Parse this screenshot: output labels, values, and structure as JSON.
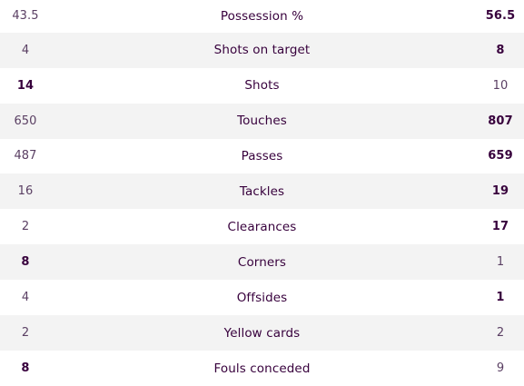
{
  "stats": [
    {
      "home": "43.5",
      "label": "Possession %",
      "away": "56.5",
      "home_bold": false,
      "away_bold": true
    },
    {
      "home": "4",
      "label": "Shots on target",
      "away": "8",
      "home_bold": false,
      "away_bold": true
    },
    {
      "home": "14",
      "label": "Shots",
      "away": "10",
      "home_bold": true,
      "away_bold": false
    },
    {
      "home": "650",
      "label": "Touches",
      "away": "807",
      "home_bold": false,
      "away_bold": true
    },
    {
      "home": "487",
      "label": "Passes",
      "away": "659",
      "home_bold": false,
      "away_bold": true
    },
    {
      "home": "16",
      "label": "Tackles",
      "away": "19",
      "home_bold": false,
      "away_bold": true
    },
    {
      "home": "2",
      "label": "Clearances",
      "away": "17",
      "home_bold": false,
      "away_bold": true
    },
    {
      "home": "8",
      "label": "Corners",
      "away": "1",
      "home_bold": true,
      "away_bold": false
    },
    {
      "home": "4",
      "label": "Offsides",
      "away": "1",
      "home_bold": false,
      "away_bold": true
    },
    {
      "home": "2",
      "label": "Yellow cards",
      "away": "2",
      "home_bold": false,
      "away_bold": false
    },
    {
      "home": "8",
      "label": "Fouls conceded",
      "away": "9",
      "home_bold": true,
      "away_bold": false
    }
  ],
  "colors": {
    "text": "#37003c",
    "row_shade": "#f3f3f3"
  }
}
